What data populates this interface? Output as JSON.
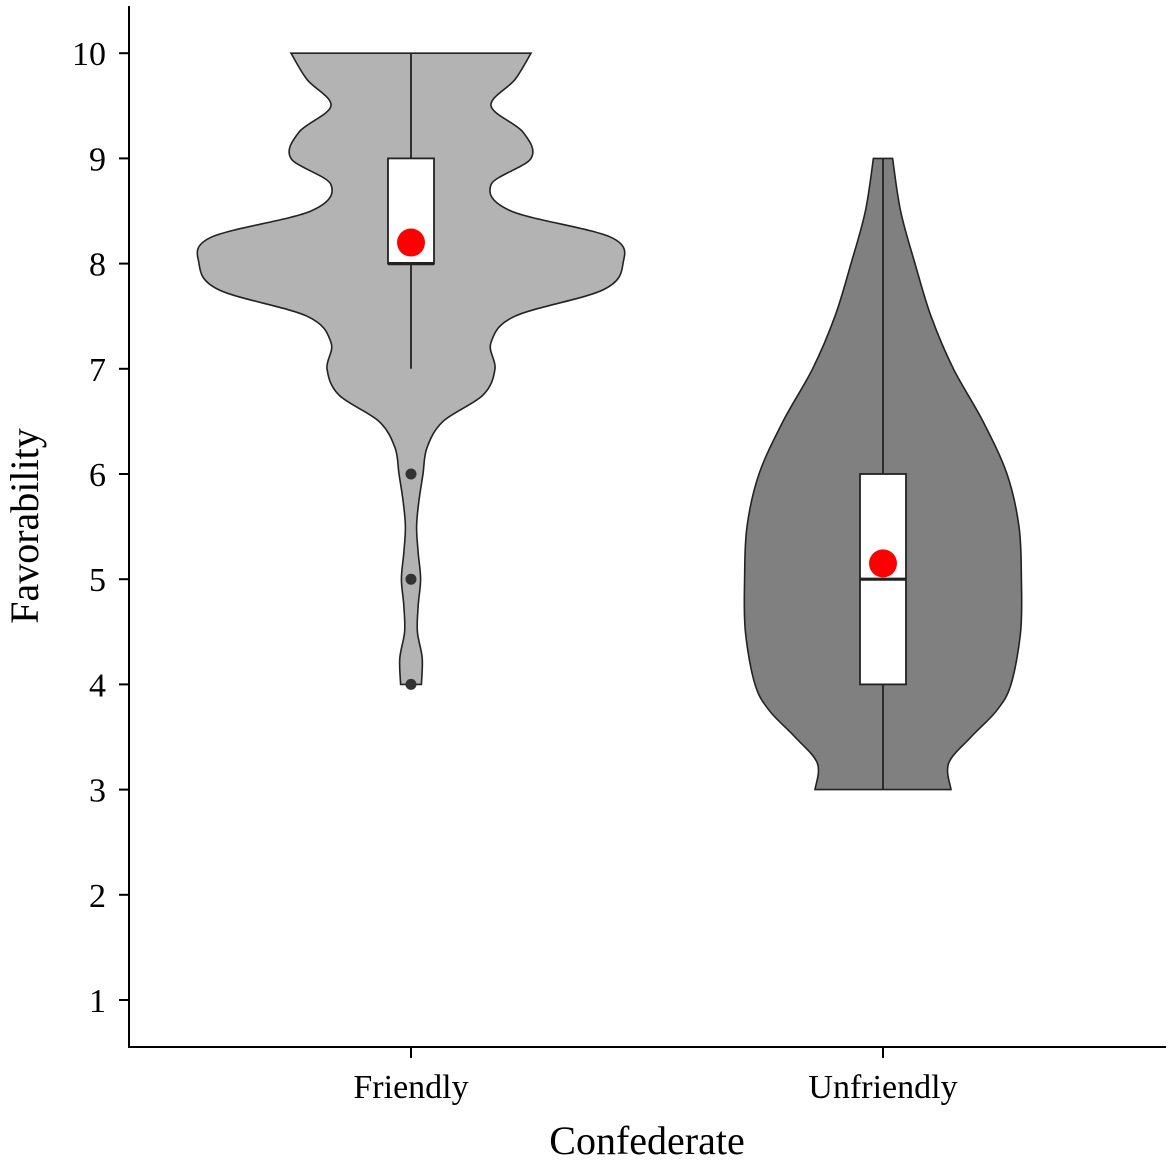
{
  "chart_data": {
    "type": "violin",
    "xlabel": "Confederate",
    "ylabel": "Favorability",
    "ylim": [
      0.5,
      10.45
    ],
    "yticks": [
      1,
      2,
      3,
      4,
      5,
      6,
      7,
      8,
      9,
      10
    ],
    "grid": false,
    "legend": "none",
    "categories": [
      "Friendly",
      "Unfriendly"
    ],
    "mean_color": "#ff0000",
    "groups": [
      {
        "category": "Friendly",
        "fill": "#b3b3b3",
        "box": {
          "q1": 8,
          "median": 8,
          "q3": 9,
          "whisker_low": 7,
          "whisker_high": 10
        },
        "mean": 8.2,
        "outliers": [
          6,
          5,
          4
        ],
        "density": [
          [
            4.0,
            0.13
          ],
          [
            4.25,
            0.14
          ],
          [
            4.5,
            0.08
          ],
          [
            4.75,
            0.09
          ],
          [
            5.0,
            0.12
          ],
          [
            5.25,
            0.09
          ],
          [
            5.5,
            0.07
          ],
          [
            5.75,
            0.1
          ],
          [
            6.0,
            0.15
          ],
          [
            6.25,
            0.2
          ],
          [
            6.5,
            0.4
          ],
          [
            6.75,
            0.9
          ],
          [
            7.0,
            1.05
          ],
          [
            7.25,
            1.0
          ],
          [
            7.5,
            1.3
          ],
          [
            7.75,
            2.4
          ],
          [
            8.0,
            2.65
          ],
          [
            8.25,
            2.5
          ],
          [
            8.5,
            1.25
          ],
          [
            8.75,
            1.0
          ],
          [
            9.0,
            1.5
          ],
          [
            9.25,
            1.4
          ],
          [
            9.5,
            1.0
          ],
          [
            9.75,
            1.3
          ],
          [
            10.0,
            1.5
          ]
        ]
      },
      {
        "category": "Unfriendly",
        "fill": "#808080",
        "box": {
          "q1": 4,
          "median": 5,
          "q3": 6,
          "whisker_low": 3,
          "whisker_high": 9
        },
        "mean": 5.15,
        "outliers": [],
        "density": [
          [
            3.0,
            0.85
          ],
          [
            3.25,
            0.82
          ],
          [
            3.5,
            1.1
          ],
          [
            3.75,
            1.42
          ],
          [
            4.0,
            1.6
          ],
          [
            4.5,
            1.72
          ],
          [
            5.0,
            1.73
          ],
          [
            5.5,
            1.7
          ],
          [
            6.0,
            1.55
          ],
          [
            6.5,
            1.25
          ],
          [
            7.0,
            0.88
          ],
          [
            7.5,
            0.6
          ],
          [
            8.0,
            0.4
          ],
          [
            8.5,
            0.22
          ],
          [
            9.0,
            0.12
          ]
        ]
      }
    ]
  }
}
